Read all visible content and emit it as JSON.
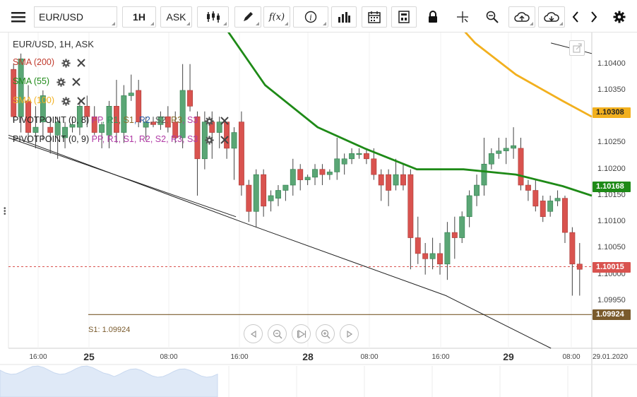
{
  "toolbar": {
    "symbol": "EUR/USD",
    "timeframe": "1H",
    "price_type": "ASK",
    "fx_label": "f(x)",
    "info_label": "i"
  },
  "chart": {
    "title": "EUR/USD, 1H, ASK",
    "indicators": [
      {
        "label": "SMA (200)",
        "color": "#c0392b"
      },
      {
        "label": "SMA (55)",
        "color": "#1e8a17"
      },
      {
        "label": "SMA (100)",
        "color": "#f2b01e"
      }
    ],
    "pivot1": {
      "name": "PIVOTPOINT (0, 8)",
      "parts": [
        {
          "t": "PP",
          "c": "#b03aa5"
        },
        {
          "t": "R1",
          "c": "#2c9a5a"
        },
        {
          "t": "S1",
          "c": "#8a6d2b"
        },
        {
          "t": "R2",
          "c": "#2b5ea8"
        },
        {
          "t": "S2",
          "c": "#5a5a5a"
        },
        {
          "t": "R3",
          "c": "#8a6d2b"
        },
        {
          "t": "S3",
          "c": "#b03aa5"
        }
      ]
    },
    "pivot2": {
      "name": "PIVOTPOINT (0, 9)",
      "parts": [
        {
          "t": "PP",
          "c": "#b03aa5"
        },
        {
          "t": "R1",
          "c": "#b03aa5"
        },
        {
          "t": "S1",
          "c": "#b03aa5"
        },
        {
          "t": "R2",
          "c": "#b03aa5"
        },
        {
          "t": "S2",
          "c": "#b03aa5"
        },
        {
          "t": "R3",
          "c": "#b03aa5"
        },
        {
          "t": "S3",
          "c": "#b03aa5"
        }
      ]
    },
    "price_axis": [
      "1.10400",
      "1.10350",
      "1.10250",
      "1.10200",
      "1.10150",
      "1.10100",
      "1.10050",
      "1.10000",
      "1.09950"
    ],
    "price_tags": [
      {
        "value": "1.10308",
        "color": "#f2b01e",
        "text_color": "#222"
      },
      {
        "value": "1.10168",
        "color": "#1e8a17",
        "text_color": "#fff"
      },
      {
        "value": "1.10015",
        "color": "#d9534f",
        "text_color": "#fff"
      },
      {
        "value": "1.09924",
        "color": "#7a5b2d",
        "text_color": "#fff"
      }
    ],
    "s1_label": "S1: 1.09924",
    "time_labels": [
      "16:00",
      "08:00",
      "16:00",
      "08:00",
      "16:00",
      "08:00"
    ],
    "day_labels": [
      "25",
      "28",
      "29"
    ],
    "date_label": "29.01.2020",
    "candles": [
      [
        1.1039,
        1.104,
        1.1029,
        1.103
      ],
      [
        1.103,
        1.1042,
        1.1027,
        1.1041
      ],
      [
        1.1033,
        1.1036,
        1.1025,
        1.1027
      ],
      [
        1.1027,
        1.1032,
        1.1024,
        1.1028
      ],
      [
        1.1029,
        1.1035,
        1.10255,
        1.1034
      ],
      [
        1.1028,
        1.103,
        1.1023,
        1.1027
      ],
      [
        1.10265,
        1.103,
        1.1022,
        1.1029
      ],
      [
        1.1026,
        1.1029,
        1.1024,
        1.1028
      ],
      [
        1.1028,
        1.103,
        1.1027,
        1.10285
      ],
      [
        1.1028,
        1.1033,
        1.10265,
        1.1032
      ],
      [
        1.1032,
        1.1034,
        1.1028,
        1.103
      ],
      [
        1.103,
        1.1032,
        1.10265,
        1.1027
      ],
      [
        1.1027,
        1.1029,
        1.1024,
        1.10285
      ],
      [
        1.10265,
        1.1033,
        1.1024,
        1.1032
      ],
      [
        1.1032,
        1.1037,
        1.1025,
        1.1027
      ],
      [
        1.1027,
        1.1036,
        1.1025,
        1.1034
      ],
      [
        1.1034,
        1.1038,
        1.1033,
        1.10345
      ],
      [
        1.1035,
        1.1037,
        1.1028,
        1.1029
      ],
      [
        1.1028,
        1.103,
        1.10255,
        1.1029
      ],
      [
        1.1029,
        1.103,
        1.1028,
        1.10285
      ],
      [
        1.10285,
        1.1031,
        1.10275,
        1.103
      ],
      [
        1.103,
        1.1032,
        1.1027,
        1.1028
      ],
      [
        1.1029,
        1.1031,
        1.1025,
        1.1026
      ],
      [
        1.1026,
        1.104,
        1.1024,
        1.1035
      ],
      [
        1.1035,
        1.104,
        1.1031,
        1.1032
      ],
      [
        1.103,
        1.1031,
        1.1015,
        1.1022
      ],
      [
        1.1022,
        1.1031,
        1.102,
        1.1029
      ],
      [
        1.1029,
        1.1031,
        1.1022,
        1.1027
      ],
      [
        1.1027,
        1.103,
        1.1024,
        1.1029
      ],
      [
        1.1029,
        1.1029,
        1.1022,
        1.1024
      ],
      [
        1.1024,
        1.1028,
        1.1018,
        1.1027
      ],
      [
        1.1029,
        1.1031,
        1.1015,
        1.1017
      ],
      [
        1.1017,
        1.1018,
        1.101,
        1.1012
      ],
      [
        1.1012,
        1.102,
        1.1009,
        1.1019
      ],
      [
        1.1019,
        1.102,
        1.1011,
        1.1013
      ],
      [
        1.1014,
        1.1016,
        1.1012,
        1.1015
      ],
      [
        1.10145,
        1.1017,
        1.1013,
        1.1016
      ],
      [
        1.1016,
        1.1017,
        1.1014,
        1.1017
      ],
      [
        1.1017,
        1.1022,
        1.1015,
        1.102
      ],
      [
        1.102,
        1.1021,
        1.1016,
        1.1018
      ],
      [
        1.1018,
        1.1019,
        1.1017,
        1.10185
      ],
      [
        1.10185,
        1.1021,
        1.1017,
        1.102
      ],
      [
        1.102,
        1.1021,
        1.1017,
        1.1019
      ],
      [
        1.1019,
        1.102,
        1.1018,
        1.10195
      ],
      [
        1.10195,
        1.1026,
        1.1018,
        1.1022
      ],
      [
        1.1021,
        1.1023,
        1.1019,
        1.1022
      ],
      [
        1.1022,
        1.1024,
        1.1021,
        1.1023
      ],
      [
        1.1023,
        1.1024,
        1.1022,
        1.1023
      ],
      [
        1.1023,
        1.1024,
        1.1021,
        1.1022
      ],
      [
        1.1022,
        1.1024,
        1.1018,
        1.1019
      ],
      [
        1.1019,
        1.102,
        1.1014,
        1.1017
      ],
      [
        1.1019,
        1.102,
        1.1013,
        1.1016
      ],
      [
        1.1017,
        1.1022,
        1.1016,
        1.1019
      ],
      [
        1.1019,
        1.1021,
        1.1016,
        1.1017
      ],
      [
        1.1019,
        1.102,
        1.1001,
        1.1007
      ],
      [
        1.1007,
        1.1011,
        1.1002,
        1.1004
      ],
      [
        1.1004,
        1.1006,
        1.1,
        1.1003
      ],
      [
        1.1003,
        1.1007,
        1.1001,
        1.1004
      ],
      [
        1.1004,
        1.1006,
        1.1,
        1.1002
      ],
      [
        1.1002,
        1.101,
        1.0999,
        1.1008
      ],
      [
        1.1008,
        1.1011,
        1.1003,
        1.1007
      ],
      [
        1.1007,
        1.1012,
        1.1006,
        1.1011
      ],
      [
        1.1011,
        1.1016,
        1.1009,
        1.1015
      ],
      [
        1.1015,
        1.1019,
        1.1013,
        1.1017
      ],
      [
        1.1017,
        1.1026,
        1.1015,
        1.1021
      ],
      [
        1.1021,
        1.1024,
        1.102,
        1.1023
      ],
      [
        1.1023,
        1.1026,
        1.1022,
        1.10235
      ],
      [
        1.10235,
        1.1026,
        1.1021,
        1.1024
      ],
      [
        1.1024,
        1.1028,
        1.1022,
        1.10245
      ],
      [
        1.1024,
        1.1026,
        1.1016,
        1.1017
      ],
      [
        1.1017,
        1.1018,
        1.1014,
        1.1016
      ],
      [
        1.1016,
        1.1018,
        1.1012,
        1.1013
      ],
      [
        1.1014,
        1.1015,
        1.101,
        1.1011
      ],
      [
        1.1012,
        1.1015,
        1.1011,
        1.1014
      ],
      [
        1.1014,
        1.1016,
        1.1013,
        1.10145
      ],
      [
        1.10145,
        1.1015,
        1.1006,
        1.1008
      ],
      [
        1.1008,
        1.1009,
        1.0996,
        1.1002
      ],
      [
        1.1002,
        1.1006,
        1.0996,
        1.1001
      ]
    ],
    "sma55": [
      [
        0.34,
        1.1052
      ],
      [
        0.44,
        1.1036
      ],
      [
        0.53,
        1.1028
      ],
      [
        0.61,
        1.1024
      ],
      [
        0.7,
        1.102
      ],
      [
        0.78,
        1.102
      ],
      [
        0.87,
        1.1019
      ],
      [
        0.95,
        1.10168
      ],
      [
        1.0,
        1.1015
      ]
    ],
    "sma100": [
      [
        0.71,
        1.1055
      ],
      [
        0.8,
        1.1044
      ],
      [
        0.87,
        1.1038
      ],
      [
        0.95,
        1.1033
      ],
      [
        1.0,
        1.103
      ]
    ],
    "trend1": [
      [
        0.0,
        1.1026
      ],
      [
        0.39,
        1.1011
      ]
    ],
    "trend2": [
      [
        0.0,
        1.10265
      ],
      [
        0.4,
        1.101
      ],
      [
        0.75,
        1.0996
      ],
      [
        0.93,
        1.0986
      ]
    ],
    "trend3": [
      [
        0.93,
        1.1044
      ],
      [
        1.0,
        1.1042
      ]
    ],
    "current_price": 1.10015,
    "s1_value": 1.09924
  }
}
